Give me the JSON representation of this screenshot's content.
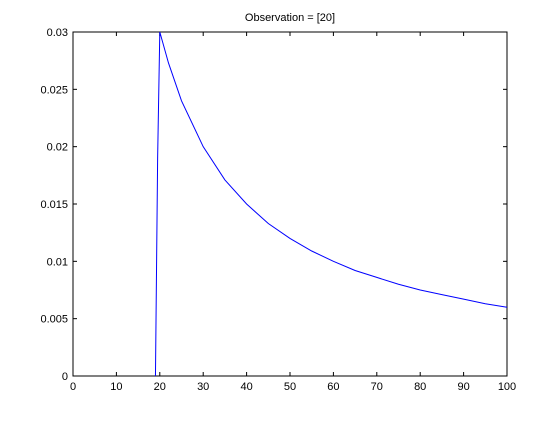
{
  "figure": {
    "background": "#ffffff"
  },
  "chart_data": {
    "type": "line",
    "title": "Observation = [20]",
    "xlabel": "",
    "ylabel": "",
    "xlim": [
      0,
      100
    ],
    "ylim": [
      0,
      0.03
    ],
    "xticks": [
      0,
      10,
      20,
      30,
      40,
      50,
      60,
      70,
      80,
      90,
      100
    ],
    "xtick_labels": [
      "0",
      "10",
      "20",
      "30",
      "40",
      "50",
      "60",
      "70",
      "80",
      "90",
      "100"
    ],
    "yticks": [
      0,
      0.005,
      0.01,
      0.015,
      0.02,
      0.025,
      0.03
    ],
    "ytick_labels": [
      "0",
      "0.005",
      "0.01",
      "0.015",
      "0.02",
      "0.025",
      "0.03"
    ],
    "grid": false,
    "series": [
      {
        "color": "#0000ff",
        "x": [
          19,
          19.5,
          20,
          22,
          25,
          30,
          35,
          40,
          45,
          50,
          55,
          60,
          65,
          70,
          75,
          80,
          85,
          90,
          95,
          100
        ],
        "y": [
          0,
          0.019,
          0.03,
          0.0273,
          0.024,
          0.02,
          0.0171,
          0.015,
          0.0133,
          0.012,
          0.0109,
          0.01,
          0.0092,
          0.0086,
          0.008,
          0.0075,
          0.0071,
          0.0067,
          0.0063,
          0.006
        ]
      }
    ]
  }
}
